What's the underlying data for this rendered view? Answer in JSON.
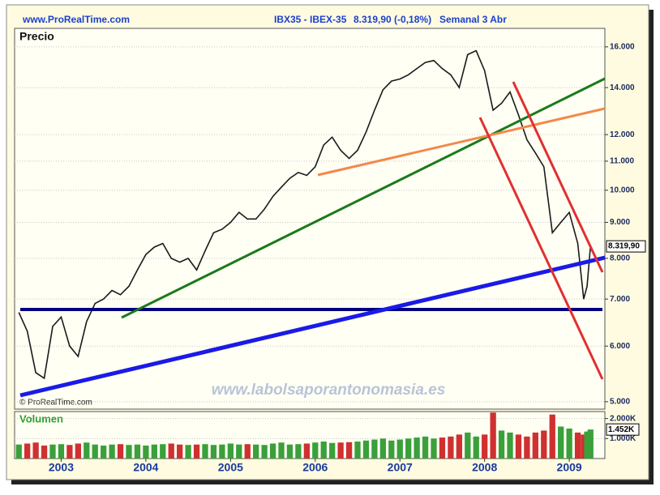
{
  "header": {
    "site": "www.ProRealTime.com",
    "symbol": "IBX35 - IBEX-35",
    "price": "8.319,90 (-0,18%)",
    "period": "Semanal  3 Abr"
  },
  "chart_data": [
    {
      "type": "line",
      "title": "Precio",
      "yscale": "log",
      "grid": true,
      "color": "#1a1a1a",
      "annotations": [
        "© ProRealTime.com",
        "www.labolsaporantonomasia.es"
      ],
      "x": [
        2002.5,
        2002.6,
        2002.7,
        2002.8,
        2002.9,
        2003,
        2003.1,
        2003.2,
        2003.3,
        2003.4,
        2003.5,
        2003.6,
        2003.7,
        2003.8,
        2003.9,
        2004,
        2004.1,
        2004.2,
        2004.3,
        2004.4,
        2004.5,
        2004.6,
        2004.7,
        2004.8,
        2004.9,
        2005,
        2005.1,
        2005.2,
        2005.3,
        2005.4,
        2005.5,
        2005.6,
        2005.7,
        2005.8,
        2005.9,
        2006,
        2006.1,
        2006.2,
        2006.3,
        2006.4,
        2006.5,
        2006.6,
        2006.7,
        2006.8,
        2006.9,
        2007,
        2007.1,
        2007.2,
        2007.3,
        2007.4,
        2007.5,
        2007.6,
        2007.7,
        2007.8,
        2007.9,
        2008,
        2008.1,
        2008.2,
        2008.3,
        2008.4,
        2008.5,
        2008.6,
        2008.7,
        2008.8,
        2008.9,
        2009,
        2009.1,
        2009.17,
        2009.21,
        2009.25
      ],
      "values": [
        6700,
        6300,
        5500,
        5400,
        6400,
        6600,
        6000,
        5800,
        6500,
        6900,
        7000,
        7200,
        7100,
        7300,
        7700,
        8100,
        8300,
        8400,
        8000,
        7900,
        8000,
        7700,
        8200,
        8700,
        8800,
        9000,
        9300,
        9100,
        9100,
        9400,
        9800,
        10100,
        10400,
        10600,
        10500,
        10800,
        11600,
        11900,
        11400,
        11100,
        11400,
        12100,
        13000,
        13900,
        14300,
        14400,
        14600,
        14900,
        15200,
        15300,
        14900,
        14600,
        14000,
        15600,
        15800,
        14800,
        13000,
        13300,
        13800,
        12800,
        11800,
        11300,
        10800,
        8700,
        9000,
        9300,
        8400,
        7000,
        7300,
        8319.9
      ],
      "xlim": [
        2002.45,
        2009.42
      ],
      "ylim": [
        4880,
        17000
      ],
      "yticks": [
        {
          "value": 5000,
          "label": "5.000"
        },
        {
          "value": 6000,
          "label": "6.000"
        },
        {
          "value": 7000,
          "label": "7.000"
        },
        {
          "value": 8000,
          "label": "8.000"
        },
        {
          "value": 9000,
          "label": "9.000"
        },
        {
          "value": 10000,
          "label": "10.000"
        },
        {
          "value": 11000,
          "label": "11.000"
        },
        {
          "value": 12000,
          "label": "12.000"
        },
        {
          "value": 14000,
          "label": "14.000"
        },
        {
          "value": 16000,
          "label": "16.000"
        }
      ],
      "last_price": {
        "value": 8319.9,
        "label": "8.319,90"
      }
    },
    {
      "type": "bar",
      "title": "Volumen",
      "up_color": "#3aa03a",
      "down_color": "#d03030",
      "x": [
        2002.5,
        2002.6,
        2002.7,
        2002.8,
        2002.9,
        2003,
        2003.1,
        2003.2,
        2003.3,
        2003.4,
        2003.5,
        2003.6,
        2003.7,
        2003.8,
        2003.9,
        2004,
        2004.1,
        2004.2,
        2004.3,
        2004.4,
        2004.5,
        2004.6,
        2004.7,
        2004.8,
        2004.9,
        2005,
        2005.1,
        2005.2,
        2005.3,
        2005.4,
        2005.5,
        2005.6,
        2005.7,
        2005.8,
        2005.9,
        2006,
        2006.1,
        2006.2,
        2006.3,
        2006.4,
        2006.5,
        2006.6,
        2006.7,
        2006.8,
        2006.9,
        2007,
        2007.1,
        2007.2,
        2007.3,
        2007.4,
        2007.5,
        2007.6,
        2007.7,
        2007.8,
        2007.9,
        2008,
        2008.1,
        2008.2,
        2008.3,
        2008.4,
        2008.5,
        2008.6,
        2008.7,
        2008.8,
        2008.9,
        2009,
        2009.1,
        2009.17,
        2009.21,
        2009.25
      ],
      "values": [
        700,
        750,
        800,
        650,
        700,
        720,
        680,
        750,
        800,
        700,
        650,
        700,
        720,
        680,
        700,
        650,
        700,
        720,
        750,
        700,
        680,
        700,
        720,
        680,
        700,
        750,
        700,
        720,
        700,
        680,
        750,
        800,
        700,
        720,
        750,
        800,
        850,
        780,
        800,
        820,
        850,
        900,
        950,
        1000,
        900,
        950,
        1000,
        1050,
        1100,
        1000,
        1050,
        1100,
        1200,
        1300,
        1100,
        1200,
        2300,
        1400,
        1300,
        1200,
        1100,
        1300,
        1400,
        2200,
        1600,
        1500,
        1300,
        1200,
        1350,
        1452
      ],
      "xlim": [
        2002.45,
        2009.42
      ],
      "ylim": [
        0,
        2350
      ],
      "xticks": [
        2003,
        2004,
        2005,
        2006,
        2007,
        2008,
        2009
      ],
      "yticks": [
        {
          "value": 1000,
          "label": "1.000K"
        },
        {
          "value": 2000,
          "label": "2.000K"
        }
      ],
      "last_value": {
        "value": 1452,
        "label": "1.452K"
      }
    }
  ]
}
